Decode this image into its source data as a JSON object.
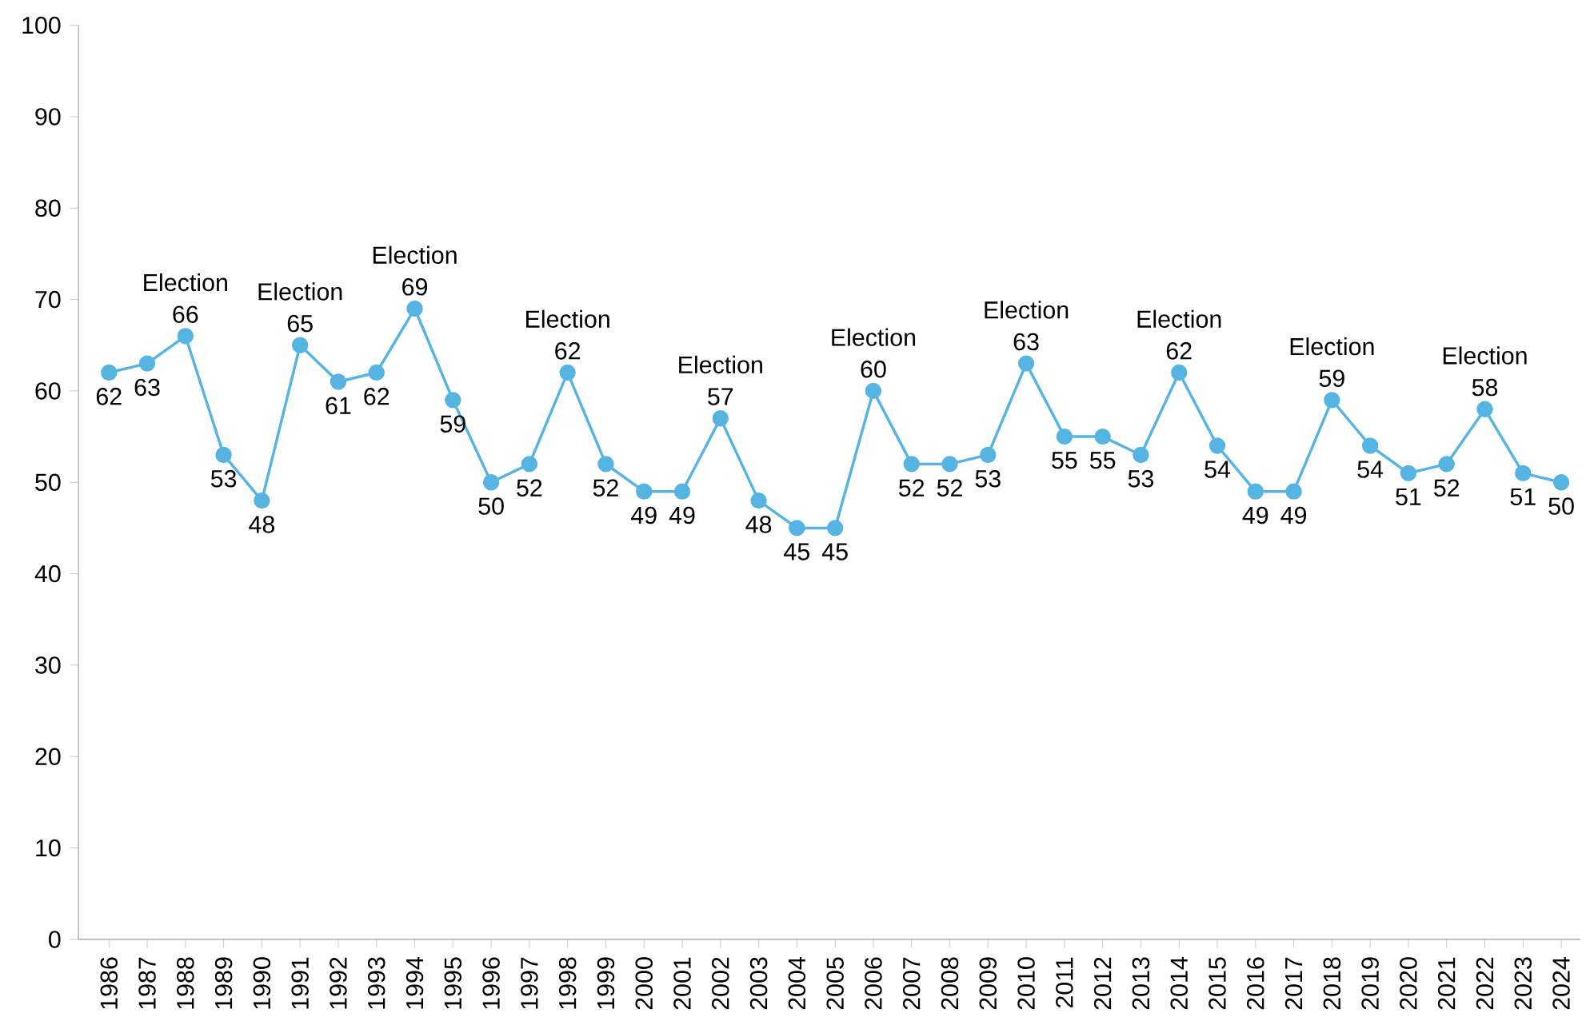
{
  "chart_data": {
    "type": "line",
    "x": [
      1986,
      1987,
      1988,
      1989,
      1990,
      1991,
      1992,
      1993,
      1994,
      1995,
      1996,
      1997,
      1998,
      1999,
      2000,
      2001,
      2002,
      2003,
      2004,
      2005,
      2006,
      2007,
      2008,
      2009,
      2010,
      2011,
      2012,
      2013,
      2014,
      2015,
      2016,
      2017,
      2018,
      2019,
      2020,
      2021,
      2022,
      2023,
      2024
    ],
    "values": [
      62,
      63,
      66,
      53,
      48,
      65,
      61,
      62,
      69,
      59,
      50,
      52,
      62,
      52,
      49,
      49,
      57,
      48,
      45,
      45,
      60,
      52,
      52,
      53,
      63,
      55,
      55,
      53,
      62,
      54,
      49,
      49,
      59,
      54,
      51,
      52,
      58,
      51,
      50
    ],
    "color": "#56b4e3",
    "xlim": [
      1985.2,
      2024.5
    ],
    "xticks": [
      1986,
      1987,
      1988,
      1989,
      1990,
      1991,
      1992,
      1993,
      1994,
      1995,
      1996,
      1997,
      1998,
      1999,
      2000,
      2001,
      2002,
      2003,
      2004,
      2005,
      2006,
      2007,
      2008,
      2009,
      2010,
      2011,
      2012,
      2013,
      2014,
      2015,
      2016,
      2017,
      2018,
      2019,
      2020,
      2021,
      2022,
      2023,
      2024
    ],
    "ylim": [
      0,
      100
    ],
    "yticks": [
      0,
      10,
      20,
      30,
      40,
      50,
      60,
      70,
      80,
      90,
      100
    ],
    "grid": false,
    "marker": "circle",
    "line_style": "solid",
    "data_labels": true,
    "annotations": [
      {
        "text": "Election",
        "x": 1988,
        "y": 66
      },
      {
        "text": "Election",
        "x": 1991,
        "y": 65
      },
      {
        "text": "Election",
        "x": 1994,
        "y": 69
      },
      {
        "text": "Election",
        "x": 1998,
        "y": 62
      },
      {
        "text": "Election",
        "x": 2002,
        "y": 57
      },
      {
        "text": "Election",
        "x": 2006,
        "y": 60
      },
      {
        "text": "Election",
        "x": 2010,
        "y": 63
      },
      {
        "text": "Election",
        "x": 2014,
        "y": 62
      },
      {
        "text": "Election",
        "x": 2018,
        "y": 59
      },
      {
        "text": "Election",
        "x": 2022,
        "y": 58
      }
    ]
  }
}
